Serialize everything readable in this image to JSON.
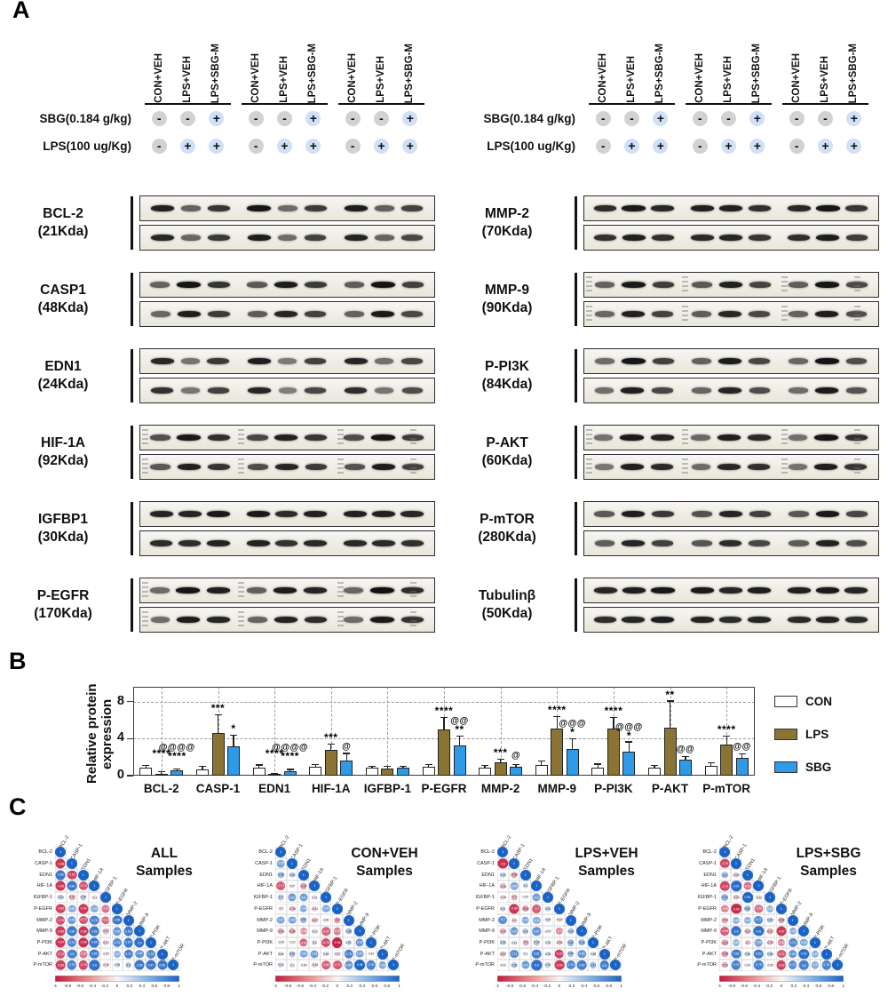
{
  "panel_a": {
    "label": "A",
    "lane_labels": [
      "CON+VEH",
      "LPS+VEH",
      "LPS+SBG-M"
    ],
    "dose_rows": [
      {
        "label": "SBG(0.184 g/kg)",
        "signs": [
          "-",
          "-",
          "+"
        ]
      },
      {
        "label": "LPS(100 ug/Kg)",
        "signs": [
          "-",
          "+",
          "+"
        ]
      }
    ],
    "minus_color": "#d2d2d2",
    "plus_color": "#cfe0f7",
    "columns": [
      {
        "proteins": [
          {
            "name": "BCL-2",
            "kda": "(21Kda)",
            "pattern": [
              0.95,
              0.5,
              0.75
            ],
            "ladder": false
          },
          {
            "name": "CASP1",
            "kda": "(48Kda)",
            "pattern": [
              0.55,
              0.97,
              0.75
            ],
            "ladder": false
          },
          {
            "name": "EDN1",
            "kda": "(24Kda)",
            "pattern": [
              0.9,
              0.4,
              0.72
            ],
            "ladder": false
          },
          {
            "name": "HIF-1A",
            "kda": "(92Kda)",
            "pattern": [
              0.65,
              0.95,
              0.78
            ],
            "ladder": true
          },
          {
            "name": "IGFBP1",
            "kda": "(30Kda)",
            "pattern": [
              0.92,
              0.88,
              0.9
            ],
            "ladder": false
          },
          {
            "name": "P-EGFR",
            "kda": "(170Kda)",
            "pattern": [
              0.5,
              0.98,
              0.88
            ],
            "ladder": true
          }
        ]
      },
      {
        "proteins": [
          {
            "name": "MMP-2",
            "kda": "(70Kda)",
            "pattern": [
              0.88,
              0.95,
              0.82
            ],
            "ladder": false
          },
          {
            "name": "MMP-9",
            "kda": "(90Kda)",
            "pattern": [
              0.55,
              0.95,
              0.7
            ],
            "ladder": true
          },
          {
            "name": "P-PI3K",
            "kda": "(84Kda)",
            "pattern": [
              0.5,
              0.97,
              0.68
            ],
            "ladder": false
          },
          {
            "name": "P-AKT",
            "kda": "(60Kda)",
            "pattern": [
              0.45,
              0.95,
              0.85
            ],
            "ladder": true
          },
          {
            "name": "P-mTOR",
            "kda": "(280Kda)",
            "pattern": [
              0.6,
              0.92,
              0.72
            ],
            "ladder": false
          },
          {
            "name": "Tubulinβ",
            "kda": "(50Kda)",
            "pattern": [
              0.92,
              0.92,
              0.92
            ],
            "ladder": false
          }
        ]
      }
    ]
  },
  "panel_b": {
    "label": "B"
  },
  "panel_c": {
    "label": "C",
    "colorbar_ticks": [
      "-1",
      "-0.8",
      "-0.6",
      "-0.4",
      "-0.2",
      "0",
      "0.2",
      "0.4",
      "0.6",
      "0.8",
      "1"
    ]
  },
  "chart_data": [
    {
      "type": "bar",
      "panel": "B",
      "title": "",
      "ylabel": "Relative protein expression",
      "ylabel_lines": [
        "Relative protein",
        "expression"
      ],
      "categories": [
        "BCL-2",
        "CASP-1",
        "EDN1",
        "HIF-1A",
        "IGFBP-1",
        "P-EGFR",
        "MMP-2",
        "MMP-9",
        "P-PI3K",
        "P-AKT",
        "P-mTOR"
      ],
      "series": [
        {
          "name": "CON",
          "color": "#ffffff",
          "values": [
            0.9,
            0.7,
            0.9,
            0.95,
            0.85,
            0.95,
            0.85,
            1.2,
            0.9,
            0.85,
            1.05
          ],
          "errors": [
            0.15,
            0.25,
            0.18,
            0.2,
            0.12,
            0.2,
            0.2,
            0.35,
            0.3,
            0.2,
            0.3
          ]
        },
        {
          "name": "LPS",
          "color": "#8a7434",
          "values": [
            0.2,
            4.6,
            0.08,
            2.75,
            0.8,
            5.0,
            1.45,
            5.1,
            5.1,
            5.2,
            3.4
          ],
          "errors": [
            0.15,
            1.9,
            0.06,
            0.6,
            0.15,
            1.2,
            0.25,
            1.2,
            1.1,
            2.8,
            0.8
          ]
        },
        {
          "name": "SBG",
          "color": "#2f9be8",
          "values": [
            0.55,
            3.2,
            0.5,
            1.6,
            0.85,
            3.3,
            1.0,
            2.9,
            2.6,
            1.7,
            1.9
          ],
          "errors": [
            0.12,
            1.1,
            0.1,
            0.75,
            0.1,
            0.9,
            0.15,
            1.0,
            1.0,
            0.3,
            0.4
          ]
        }
      ],
      "sig_lps": [
        "****",
        "***",
        "****",
        "***",
        "",
        "****",
        "***",
        "****",
        "****",
        "**",
        "****"
      ],
      "sig_sbg": [
        "****",
        "*",
        "****",
        "",
        "",
        "**",
        "",
        "*",
        "*",
        "",
        ""
      ],
      "at_sbg": [
        "@@@@",
        "",
        "@@@@",
        "@",
        "",
        "@@",
        "@",
        "@@@",
        "@@@",
        "@@",
        "@@"
      ],
      "yticks": [
        0,
        4,
        8
      ],
      "ylim": [
        0,
        9.6
      ],
      "grid": "dashed",
      "legend": [
        "CON",
        "LPS",
        "SBG"
      ],
      "legend_position": "right"
    },
    {
      "type": "heatmap",
      "title": "ALL",
      "subtitle": "Samples",
      "labels": [
        "BCL-2",
        "CASP-1",
        "EDN1",
        "HIF-1A",
        "IGFBP-1",
        "P-EGFR",
        "MMP-2",
        "MMP-9",
        "P-PI3K",
        "P-AKT",
        "P-mTOR"
      ],
      "lower_triangle": [
        [
          -0.88
        ],
        [
          0.86,
          -0.81
        ],
        [
          -0.86,
          0.86,
          -0.73
        ],
        [
          0.24,
          -0.31,
          0.28,
          -0.1
        ],
        [
          -0.82,
          0.53,
          -0.88,
          0.53,
          -0.61
        ],
        [
          -0.75,
          0.65,
          -0.72,
          0.78,
          -0.64,
          0.86
        ],
        [
          -0.85,
          0.86,
          -0.88,
          0.83,
          -0.27,
          0.65,
          0.83
        ],
        [
          -0.87,
          0.76,
          -0.89,
          0.85,
          -0.21,
          0.73,
          0.84,
          0.9
        ],
        [
          -0.72,
          0.8,
          -0.59,
          0.83,
          -0.05,
          0.47,
          0.79,
          0.68,
          0.75
        ],
        [
          -0.82,
          0.79,
          -0.78,
          0.9,
          -0.15,
          0.18,
          0.3,
          0.85,
          0.87,
          0.86
        ]
      ]
    },
    {
      "type": "heatmap",
      "title": "CON+VEH",
      "subtitle": "Samples",
      "labels": [
        "BCL-2",
        "CASP-1",
        "EDN1",
        "HIF-1A",
        "IGFBP-1",
        "P-EGFR",
        "MMP-2",
        "MMP-9",
        "P-PI3K",
        "P-AKT",
        "P-mTOR"
      ],
      "lower_triangle": [
        [
          0.55
        ],
        [
          0.38,
          0.26
        ],
        [
          -0.71,
          0.07,
          -0.37
        ],
        [
          0.3,
          0.63,
          0.6,
          0.11
        ],
        [
          -0.1,
          -0.26,
          0.54,
          -0.21,
          0.55
        ],
        [
          0.57,
          0.58,
          0.43,
          -0.27,
          0.09,
          -0.4
        ],
        [
          -0.33,
          -0.36,
          -0.45,
          0.13,
          -0.67,
          -0.53,
          0.35
        ],
        [
          -0.05,
          -0.02,
          -0.66,
          0.2,
          -0.75,
          -0.96,
          0.21,
          0.62
        ],
        [
          0.18,
          0.33,
          0.58,
          0.61,
          0.18,
          -0.17,
          0.78,
          0.57,
          0.04
        ],
        [
          0.19,
          -0.1,
          -0.05,
          -0.18,
          -0.68,
          -0.71,
          0.65,
          0.98,
          0.78,
          0.55
        ]
      ]
    },
    {
      "type": "heatmap",
      "title": "LPS+VEH",
      "subtitle": "Samples",
      "labels": [
        "BCL-2",
        "CASP-1",
        "EDN1",
        "HIF-1A",
        "IGFBP-1",
        "P-EGFR",
        "MMP-2",
        "MMP-9",
        "P-PI3K",
        "P-AKT",
        "P-mTOR"
      ],
      "lower_triangle": [
        [
          -0.9
        ],
        [
          0.24,
          -0.38
        ],
        [
          -0.26,
          0.54,
          0.2
        ],
        [
          -0.15,
          -0.3,
          0.03,
          0.6
        ],
        [
          0.21,
          -0.88,
          -0.43,
          -0.7,
          0.24
        ],
        [
          0.7,
          -0.2,
          0.55,
          0.5,
          0.19,
          -0.16
        ],
        [
          -0.29,
          0.63,
          0.29,
          0.67,
          -0.07,
          -0.5,
          0.34
        ],
        [
          0.25,
          0.13,
          -0.3,
          0.29,
          0.16,
          -0.25,
          0.42,
          0.41
        ],
        [
          -0.27,
          0.71,
          0.1,
          0.81,
          0.18,
          -0.83,
          0.41,
          0.66,
          0.18
        ],
        [
          0.03,
          0.28,
          0.62,
          0.9,
          0.24,
          -0.84,
          0.76,
          0.82,
          0.37,
          0.8
        ]
      ]
    },
    {
      "type": "heatmap",
      "title": "LPS+SBG",
      "subtitle": "Samples",
      "labels": [
        "BCL-2",
        "CASP-1",
        "EDN1",
        "HIF-1A",
        "IGFBP-1",
        "P-EGFR",
        "MMP-2",
        "MMP-9",
        "P-PI3K",
        "P-AKT",
        "P-mTOR"
      ],
      "lower_triangle": [
        [
          -0.79
        ],
        [
          0.4,
          -0.23
        ],
        [
          -0.79,
          0.93,
          -0.61
        ],
        [
          0.44,
          -0.24,
          0.98,
          -0.12
        ],
        [
          -0.52,
          -0.93,
          0.42,
          -0.62,
          0.45
        ],
        [
          -0.33,
          0.48,
          0.49,
          0.72,
          0.29,
          -0.38
        ],
        [
          -0.69,
          0.9,
          -0.29,
          0.91,
          -0.31,
          -0.87,
          0.49
        ],
        [
          -0.37,
          0.45,
          -0.2,
          0.58,
          -0.26,
          -0.52,
          0.74,
          0.53
        ],
        [
          -0.39,
          0.83,
          0.26,
          0.82,
          0.26,
          -0.71,
          0.69,
          0.92,
          0.49
        ],
        [
          -0.32,
          0.79,
          0.04,
          0.79,
          -0.05,
          -0.82,
          0.72,
          0.8,
          0.5,
          0.78
        ]
      ]
    }
  ],
  "heatmap_colors": {
    "negative": "#c41a3e",
    "positive": "#1a63c4",
    "mid": "#f7f7f7"
  }
}
